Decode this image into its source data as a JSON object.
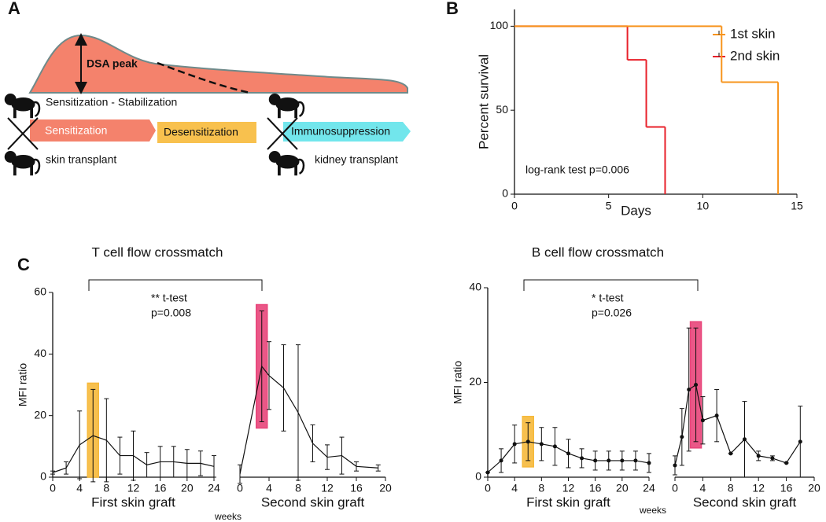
{
  "panel_labels": [
    "A",
    "B",
    "C"
  ],
  "diagram": {
    "peak_label": "DSA peak",
    "phase_label": "Sensitization - Stabilization",
    "steps": [
      "Sensitization",
      "Desensitization",
      "Immunosuppression"
    ],
    "transplants": [
      "skin transplant",
      "kidney transplant"
    ]
  },
  "chart_data": [
    {
      "type": "step",
      "xlabel": "Days",
      "ylabel": "Percent survival",
      "xlim": [
        0,
        15
      ],
      "xticks": [
        0,
        5,
        10,
        15
      ],
      "ylim": [
        0,
        110
      ],
      "yticks": [
        0,
        50,
        100
      ],
      "annotation": "log-rank test p=0.006",
      "legend": "upper right",
      "series": [
        {
          "name": "1st skin",
          "color": "#f7941d",
          "x": [
            0,
            11,
            14
          ],
          "values": [
            100,
            66.7,
            0
          ]
        },
        {
          "name": "2nd skin",
          "color": "#e8202a",
          "x": [
            0,
            6,
            7,
            8
          ],
          "values": [
            100,
            80,
            40,
            0
          ]
        }
      ]
    },
    {
      "type": "errorline",
      "title": "T cell flow crossmatch",
      "ylabel": "MFI ratio",
      "xlabel": "weeks",
      "ylim": [
        0,
        60
      ],
      "yticks": [
        0,
        20,
        40,
        60
      ],
      "markers": false,
      "color": "#111111",
      "annotation": [
        "** t-test",
        "p=0.008"
      ],
      "segments": [
        {
          "label": "First skin graft",
          "xlim": [
            0,
            24
          ],
          "xticks": [
            0,
            4,
            8,
            12,
            16,
            20,
            24
          ],
          "x": [
            0,
            2,
            4,
            6,
            8,
            10,
            12,
            14,
            16,
            18,
            20,
            22,
            24
          ],
          "values": [
            1.5,
            3,
            10.5,
            13.5,
            12,
            7,
            7,
            4,
            5,
            5,
            4.5,
            4.5,
            3.5
          ],
          "errors": [
            0.5,
            2,
            11,
            15,
            13.5,
            6,
            8,
            4,
            5,
            5,
            4.5,
            4,
            3.5
          ],
          "highlight": {
            "x": 6,
            "color": "#f6b93b"
          }
        },
        {
          "label": "Second skin graft",
          "xlim": [
            0,
            20
          ],
          "xticks": [
            0,
            4,
            8,
            12,
            16,
            20
          ],
          "x": [
            0,
            3,
            4,
            6,
            8,
            10,
            12,
            14,
            16,
            19
          ],
          "values": [
            1,
            36,
            33,
            29,
            21,
            11,
            6.5,
            7,
            3.5,
            3
          ],
          "errors": [
            3,
            18,
            11,
            14,
            22,
            6,
            4,
            6,
            1.5,
            1
          ],
          "highlight": {
            "x": 3,
            "color": "#e8457a"
          }
        }
      ]
    },
    {
      "type": "errorline",
      "title": "B cell flow crossmatch",
      "ylabel": "MFI ratio",
      "xlabel": "weeks",
      "ylim": [
        0,
        40
      ],
      "yticks": [
        0,
        20,
        40
      ],
      "markers": true,
      "color": "#111111",
      "annotation": [
        "* t-test",
        "p=0.026"
      ],
      "segments": [
        {
          "label": "First skin graft",
          "xlim": [
            0,
            24
          ],
          "xticks": [
            0,
            4,
            8,
            12,
            16,
            20,
            24
          ],
          "x": [
            0,
            2,
            4,
            6,
            8,
            10,
            12,
            14,
            16,
            18,
            20,
            22,
            24
          ],
          "values": [
            1,
            3.5,
            7,
            7.5,
            7,
            6.5,
            5,
            4,
            3.5,
            3.5,
            3.5,
            3.5,
            3
          ],
          "errors": [
            0,
            2.5,
            4,
            4,
            3.5,
            4,
            3,
            2,
            2,
            2,
            2,
            2,
            2
          ],
          "highlight": {
            "x": 6,
            "color": "#f6b93b"
          }
        },
        {
          "label": "Second skin graft",
          "xlim": [
            0,
            20
          ],
          "xticks": [
            0,
            4,
            8,
            12,
            16,
            20
          ],
          "x": [
            0,
            1,
            2,
            3,
            4,
            6,
            8,
            10,
            12,
            14,
            16,
            18
          ],
          "values": [
            2.5,
            8.5,
            18.5,
            19.5,
            12,
            13,
            5,
            8,
            4.5,
            4,
            3,
            7.5
          ],
          "errors": [
            2,
            6,
            13,
            12,
            5,
            5.5,
            0,
            8,
            1,
            0.5,
            0,
            7.5
          ],
          "highlight": {
            "x": 3,
            "color": "#e8457a"
          }
        }
      ]
    }
  ]
}
